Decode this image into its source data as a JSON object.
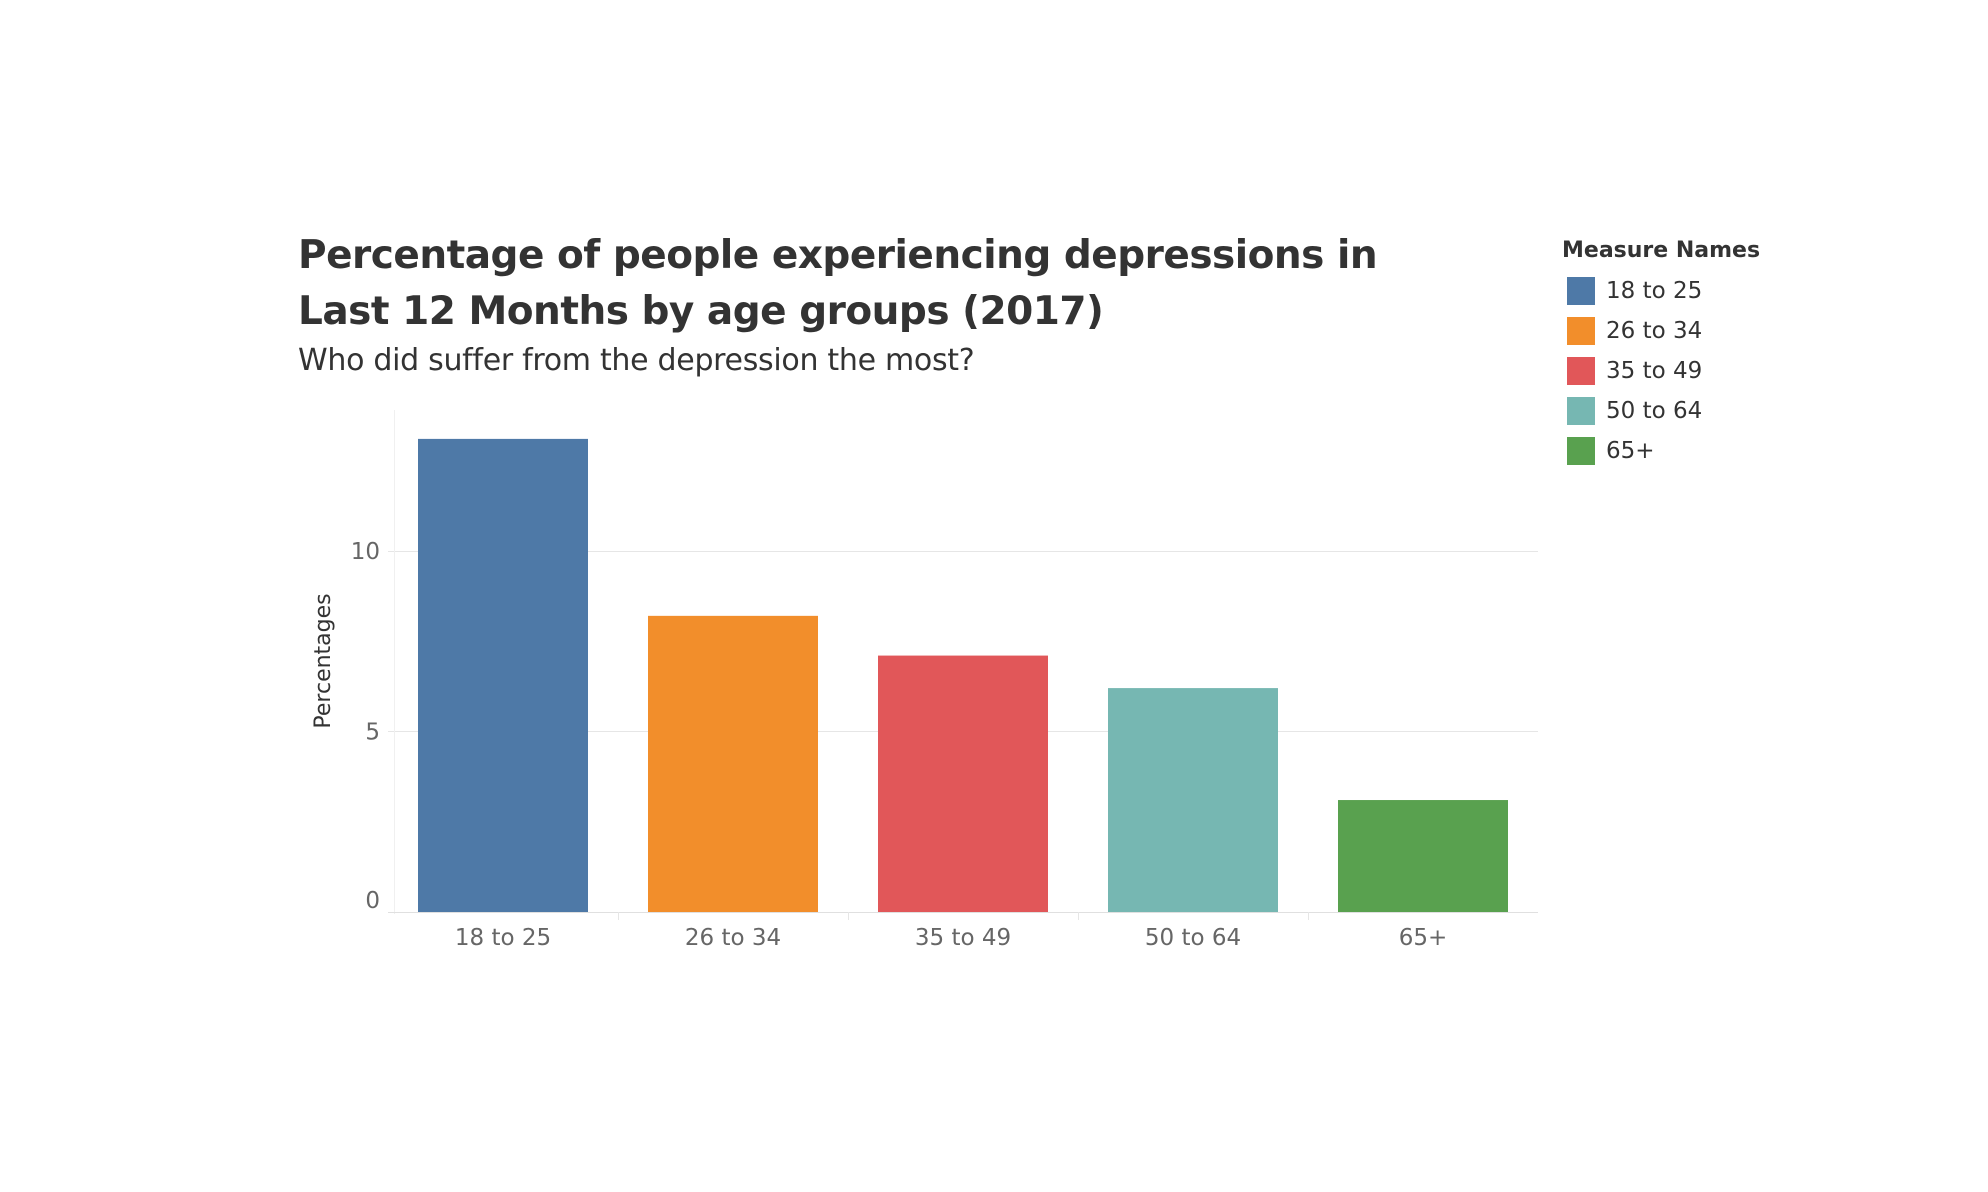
{
  "chart_data": {
    "type": "bar",
    "title": "Percentage of people experiencing depressions in Last 12 Months by age groups (2017)",
    "subtitle": "Who did suffer from the depression the most?",
    "ylabel": "Percentages",
    "xlabel": "",
    "categories": [
      "18 to 25",
      "26 to 34",
      "35 to 49",
      "50 to 64",
      "65+"
    ],
    "values": [
      13.1,
      8.2,
      7.1,
      6.2,
      3.1
    ],
    "colors": [
      "#4e79a7",
      "#f28e2b",
      "#e15759",
      "#76b7b2",
      "#59a14f"
    ],
    "ylim": [
      0,
      13.9
    ],
    "yticks": [
      0,
      5,
      10
    ],
    "grid": true,
    "legend": {
      "title": "Measure Names",
      "position": "top-right",
      "items": [
        "18 to 25",
        "26 to 34",
        "35 to 49",
        "50 to 64",
        "65+"
      ]
    }
  }
}
